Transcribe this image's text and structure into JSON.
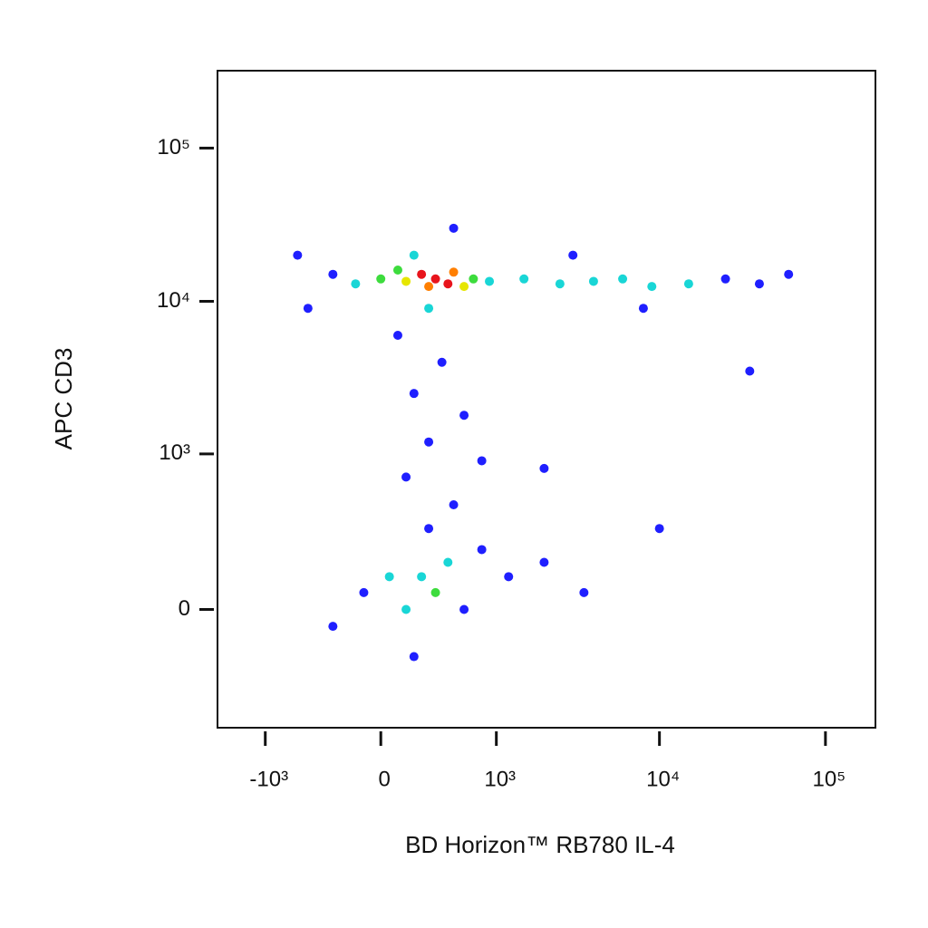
{
  "chart_data": {
    "type": "scatter",
    "x_label": "BD Horizon™ RB780 IL-4",
    "y_label": "APC CD3",
    "xscale": "biexponential",
    "yscale": "biexponential",
    "xlim": [
      -2000,
      200000
    ],
    "ylim": [
      -560,
      320000
    ],
    "xticks": [
      {
        "value": -1000,
        "label": "-10³"
      },
      0,
      {
        "value": 1000,
        "label": "10³"
      },
      {
        "value": 10000,
        "label": "10⁴"
      },
      {
        "value": 100000,
        "label": "10⁵"
      }
    ],
    "yticks": [
      0,
      {
        "value": 1000,
        "label": "10³"
      },
      {
        "value": 10000,
        "label": "10⁴"
      },
      {
        "value": 100000,
        "label": "10⁵"
      }
    ],
    "x": [
      350,
      250,
      450,
      300,
      500,
      150,
      600,
      100,
      700,
      0,
      -150,
      900,
      200,
      300,
      -300,
      1500,
      2500,
      4000,
      6000,
      9000,
      15000,
      25000,
      40000,
      60000,
      3000,
      8000,
      500,
      100,
      400,
      200,
      600,
      300,
      800,
      150,
      2000,
      35000,
      -500,
      -600,
      250,
      350,
      150,
      450,
      50,
      600,
      -100,
      300,
      200,
      800,
      -300,
      1200,
      2000,
      3500,
      10000,
      500
    ],
    "y": [
      14000,
      15000,
      13000,
      12500,
      15500,
      13500,
      12500,
      16000,
      14000,
      14000,
      13000,
      13500,
      20000,
      9000,
      15000,
      14000,
      13000,
      13500,
      14000,
      12500,
      13000,
      14000,
      13000,
      15000,
      20000,
      9000,
      30000,
      6000,
      4000,
      2500,
      1800,
      1200,
      900,
      700,
      800,
      3500,
      9000,
      20000,
      100,
      50,
      0,
      150,
      100,
      0,
      50,
      300,
      -150,
      200,
      -50,
      100,
      150,
      50,
      300,
      450
    ],
    "point_colors": [
      "#e8141c",
      "#e8141c",
      "#e8141c",
      "#ff7f00",
      "#ff7f00",
      "#e6e600",
      "#e6e600",
      "#3ddc3d",
      "#3ddc3d",
      "#3ddc3d",
      "#19d6d6",
      "#19d6d6",
      "#19d6d6",
      "#19d6d6",
      "#1f1fff",
      "#19d6d6",
      "#19d6d6",
      "#19d6d6",
      "#19d6d6",
      "#19d6d6",
      "#19d6d6",
      "#1f1fff",
      "#1f1fff",
      "#1f1fff",
      "#1f1fff",
      "#1f1fff",
      "#1f1fff",
      "#1f1fff",
      "#1f1fff",
      "#1f1fff",
      "#1f1fff",
      "#1f1fff",
      "#1f1fff",
      "#1f1fff",
      "#1f1fff",
      "#1f1fff",
      "#1f1fff",
      "#1f1fff",
      "#19d6d6",
      "#3ddc3d",
      "#19d6d6",
      "#19d6d6",
      "#19d6d6",
      "#1f1fff",
      "#1f1fff",
      "#1f1fff",
      "#1f1fff",
      "#1f1fff",
      "#1f1fff",
      "#1f1fff",
      "#1f1fff",
      "#1f1fff",
      "#1f1fff",
      "#1f1fff"
    ]
  }
}
